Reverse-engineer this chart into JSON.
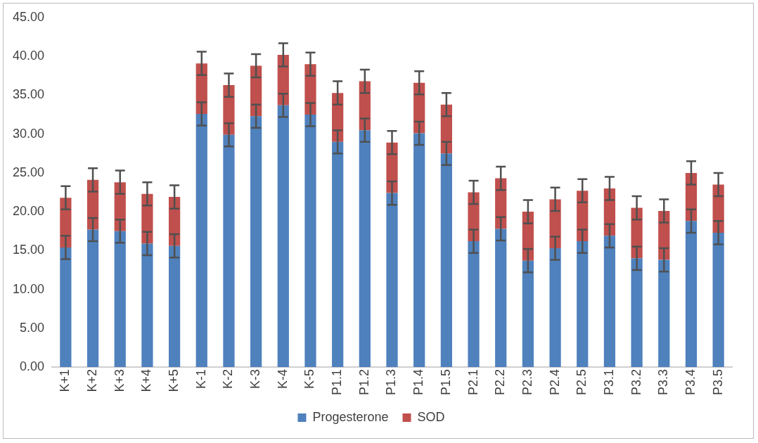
{
  "chart_data": {
    "type": "bar",
    "stacked": true,
    "categories": [
      "K+1",
      "K+2",
      "K+3",
      "K+4",
      "K+5",
      "K-1",
      "K-2",
      "K-3",
      "K-4",
      "K-5",
      "P1.1",
      "P1.2",
      "P1.3",
      "P1.4",
      "P1.5",
      "P2.1",
      "P2.2",
      "P2.3",
      "P2.4",
      "P2.5",
      "P3.1",
      "P3.2",
      "P3.3",
      "P3.4",
      "P3.5"
    ],
    "series": [
      {
        "name": "Progesterone",
        "color": "#4f81bd",
        "values": [
          15.4,
          17.7,
          17.5,
          15.9,
          15.6,
          32.6,
          29.9,
          32.3,
          33.7,
          32.5,
          29.0,
          30.5,
          22.4,
          30.1,
          27.5,
          16.2,
          17.8,
          13.7,
          15.3,
          16.2,
          16.9,
          14.0,
          13.8,
          18.8,
          17.3
        ],
        "errors": [
          1.5,
          1.5,
          1.5,
          1.5,
          1.5,
          1.5,
          1.5,
          1.5,
          1.5,
          1.5,
          1.5,
          1.5,
          1.5,
          1.5,
          1.5,
          1.5,
          1.5,
          1.5,
          1.5,
          1.5,
          1.5,
          1.5,
          1.5,
          1.5,
          1.5
        ]
      },
      {
        "name": "SOD",
        "color": "#c0504d",
        "values": [
          6.4,
          6.4,
          6.3,
          6.4,
          6.3,
          6.5,
          6.4,
          6.5,
          6.5,
          6.5,
          6.3,
          6.3,
          6.5,
          6.5,
          6.3,
          6.3,
          6.5,
          6.3,
          6.3,
          6.5,
          6.1,
          6.5,
          6.3,
          6.2,
          6.2
        ],
        "errors": [
          1.5,
          1.5,
          1.5,
          1.5,
          1.5,
          1.5,
          1.5,
          1.5,
          1.5,
          1.5,
          1.5,
          1.5,
          1.5,
          1.5,
          1.5,
          1.5,
          1.5,
          1.5,
          1.5,
          1.5,
          1.5,
          1.5,
          1.5,
          1.5,
          1.5
        ]
      }
    ],
    "ylim": [
      0,
      45
    ],
    "yticks": [
      {
        "value": 0,
        "label": "0.00"
      },
      {
        "value": 5,
        "label": "5.00"
      },
      {
        "value": 10,
        "label": "10.00"
      },
      {
        "value": 15,
        "label": "15.00"
      },
      {
        "value": 20,
        "label": "20.00"
      },
      {
        "value": 25,
        "label": "25.00"
      },
      {
        "value": 30,
        "label": "30.00"
      },
      {
        "value": 35,
        "label": "35.00"
      },
      {
        "value": 40,
        "label": "40.00"
      },
      {
        "value": 45,
        "label": "45.00"
      }
    ],
    "grid": false,
    "legend": "bottom"
  }
}
